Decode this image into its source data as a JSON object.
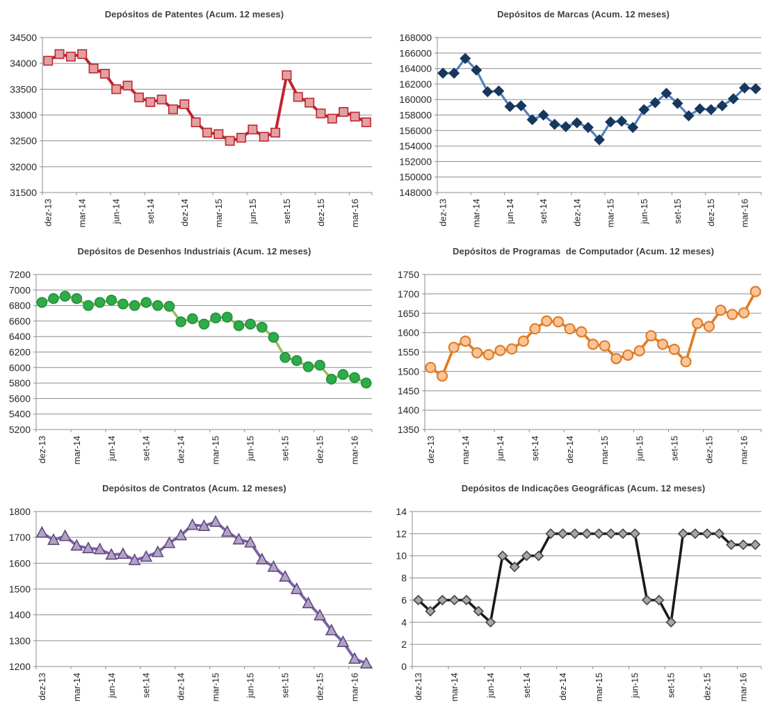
{
  "chart_data": [
    {
      "type": "line",
      "title": "Depósitos de Patentes (Acum. 12 meses)",
      "categories": [
        "dez-13",
        "jan-14",
        "fev-14",
        "mar-14",
        "abr-14",
        "mai-14",
        "jun-14",
        "jul-14",
        "ago-14",
        "set-14",
        "out-14",
        "nov-14",
        "dez-14",
        "jan-15",
        "fev-15",
        "mar-15",
        "abr-15",
        "mai-15",
        "jun-15",
        "jul-15",
        "ago-15",
        "set-15",
        "out-15",
        "nov-15",
        "dez-15",
        "jan-16",
        "fev-16",
        "mar-16",
        "abr-16"
      ],
      "values": [
        34050,
        34180,
        34130,
        34180,
        33900,
        33800,
        33500,
        33570,
        33340,
        33250,
        33300,
        33110,
        33210,
        32860,
        32660,
        32630,
        32500,
        32560,
        32720,
        32580,
        32660,
        33770,
        33350,
        33240,
        33030,
        32930,
        33060,
        32970,
        32860
      ],
      "xtick_labels": [
        "dez-13",
        "mar-14",
        "jun-14",
        "set-14",
        "dez-14",
        "mar-15",
        "jun-15",
        "set-15",
        "dez-15",
        "mar-16"
      ],
      "xtick_every": 3,
      "ylim": [
        31500,
        34500
      ],
      "ytick_step": 500,
      "marker": "square",
      "line_color": "#C3232F",
      "marker_fill": "#E2A1A1",
      "marker_border": "#BD2532",
      "grid": true,
      "legend": "none",
      "x_label_rotation": -90
    },
    {
      "type": "line",
      "title": "Depósitos de Marcas (Acum. 12 meses)",
      "categories": [
        "dez-13",
        "jan-14",
        "fev-14",
        "mar-14",
        "abr-14",
        "mai-14",
        "jun-14",
        "jul-14",
        "ago-14",
        "set-14",
        "out-14",
        "nov-14",
        "dez-14",
        "jan-15",
        "fev-15",
        "mar-15",
        "abr-15",
        "mai-15",
        "jun-15",
        "jul-15",
        "ago-15",
        "set-15",
        "out-15",
        "nov-15",
        "dez-15",
        "jan-16",
        "fev-16",
        "mar-16",
        "abr-16"
      ],
      "values": [
        163400,
        163400,
        165300,
        163800,
        161000,
        161100,
        159100,
        159200,
        157400,
        158000,
        156800,
        156500,
        157000,
        156400,
        154800,
        157100,
        157200,
        156400,
        158700,
        159600,
        160800,
        159500,
        157900,
        158800,
        158700,
        159200,
        160100,
        161500,
        161400
      ],
      "xtick_labels": [
        "dez-13",
        "mar-14",
        "jun-14",
        "set-14",
        "dez-14",
        "mar-15",
        "jun-15",
        "set-15",
        "dez-15",
        "mar-16"
      ],
      "xtick_every": 3,
      "ylim": [
        148000,
        168000
      ],
      "ytick_step": 2000,
      "marker": "diamond",
      "line_color": "#4F81BD",
      "marker_fill": "#17375D",
      "marker_border": "#17375D",
      "grid": true,
      "legend": "none",
      "x_label_rotation": -90
    },
    {
      "type": "line",
      "title": "Depósitos de Desenhos Industriais (Acum. 12 meses)",
      "categories": [
        "dez-13",
        "jan-14",
        "fev-14",
        "mar-14",
        "abr-14",
        "mai-14",
        "jun-14",
        "jul-14",
        "ago-14",
        "set-14",
        "out-14",
        "nov-14",
        "dez-14",
        "jan-15",
        "fev-15",
        "mar-15",
        "abr-15",
        "mai-15",
        "jun-15",
        "jul-15",
        "ago-15",
        "set-15",
        "out-15",
        "nov-15",
        "dez-15",
        "jan-16",
        "fev-16",
        "mar-16",
        "abr-16"
      ],
      "values": [
        6840,
        6890,
        6920,
        6890,
        6800,
        6840,
        6870,
        6820,
        6800,
        6840,
        6800,
        6790,
        6590,
        6630,
        6560,
        6640,
        6650,
        6540,
        6560,
        6520,
        6390,
        6130,
        6090,
        6010,
        6030,
        5850,
        5910,
        5870,
        5800
      ],
      "xtick_labels": [
        "dez-13",
        "mar-14",
        "jun-14",
        "set-14",
        "dez-14",
        "mar-15",
        "jun-15",
        "set-15",
        "dez-15",
        "mar-16"
      ],
      "xtick_every": 3,
      "ylim": [
        5200,
        7200
      ],
      "ytick_step": 200,
      "marker": "circle",
      "line_color": "#9BBB59",
      "marker_fill": "#2EAC4A",
      "marker_border": "#1F9038",
      "grid": true,
      "legend": "none",
      "x_label_rotation": -90
    },
    {
      "type": "line",
      "title": "Depósitos de Programas  de Computador (Acum. 12 meses)",
      "categories": [
        "dez-13",
        "jan-14",
        "fev-14",
        "mar-14",
        "abr-14",
        "mai-14",
        "jun-14",
        "jul-14",
        "ago-14",
        "set-14",
        "out-14",
        "nov-14",
        "dez-14",
        "jan-15",
        "fev-15",
        "mar-15",
        "abr-15",
        "mai-15",
        "jun-15",
        "jul-15",
        "ago-15",
        "set-15",
        "out-15",
        "nov-15",
        "dez-15",
        "jan-16",
        "fev-16",
        "mar-16",
        "abr-16"
      ],
      "values": [
        1510,
        1488,
        1562,
        1578,
        1548,
        1543,
        1554,
        1558,
        1578,
        1610,
        1630,
        1628,
        1610,
        1602,
        1570,
        1566,
        1533,
        1542,
        1553,
        1592,
        1570,
        1557,
        1525,
        1624,
        1616,
        1658,
        1647,
        1651,
        1706
      ],
      "xtick_labels": [
        "dez-13",
        "mar-14",
        "jun-14",
        "set-14",
        "dez-14",
        "mar-15",
        "jun-15",
        "set-15",
        "dez-15",
        "mar-16"
      ],
      "xtick_every": 3,
      "ylim": [
        1350,
        1750
      ],
      "ytick_step": 50,
      "marker": "circle",
      "line_color": "#E07D26",
      "marker_fill": "#F9C499",
      "marker_border": "#E07D26",
      "grid": true,
      "legend": "none",
      "x_label_rotation": -90
    },
    {
      "type": "line",
      "title": "Depósitos de Contratos (Acum. 12 meses)",
      "categories": [
        "dez-13",
        "jan-14",
        "fev-14",
        "mar-14",
        "abr-14",
        "mai-14",
        "jun-14",
        "jul-14",
        "ago-14",
        "set-14",
        "out-14",
        "nov-14",
        "dez-14",
        "jan-15",
        "fev-15",
        "mar-15",
        "abr-15",
        "mai-15",
        "jun-15",
        "jul-15",
        "ago-15",
        "set-15",
        "out-15",
        "nov-15",
        "dez-15",
        "jan-16",
        "fev-16",
        "mar-16",
        "abr-16"
      ],
      "values": [
        1718,
        1690,
        1705,
        1668,
        1658,
        1654,
        1633,
        1636,
        1612,
        1625,
        1643,
        1678,
        1708,
        1748,
        1744,
        1760,
        1722,
        1692,
        1680,
        1615,
        1586,
        1548,
        1500,
        1445,
        1398,
        1340,
        1295,
        1230,
        1212
      ],
      "xtick_labels": [
        "dez-13",
        "mar-14",
        "jun-14",
        "set-14",
        "dez-14",
        "mar-15",
        "jun-15",
        "set-15",
        "dez-15",
        "mar-16"
      ],
      "xtick_every": 3,
      "ylim": [
        1200,
        1800
      ],
      "ytick_step": 100,
      "marker": "triangle",
      "line_color": "#7C62A8",
      "marker_fill": "#B2A2C8",
      "marker_border": "#5F497A",
      "grid": true,
      "legend": "none",
      "x_label_rotation": -90
    },
    {
      "type": "line",
      "title": "Depósitos de Indicações Geográficas (Acum. 12 meses)",
      "categories": [
        "dez-13",
        "jan-14",
        "fev-14",
        "mar-14",
        "abr-14",
        "mai-14",
        "jun-14",
        "jul-14",
        "ago-14",
        "set-14",
        "out-14",
        "nov-14",
        "dez-14",
        "jan-15",
        "fev-15",
        "mar-15",
        "abr-15",
        "mai-15",
        "jun-15",
        "jul-15",
        "ago-15",
        "set-15",
        "out-15",
        "nov-15",
        "dez-15",
        "jan-16",
        "fev-16",
        "mar-16",
        "abr-16"
      ],
      "values": [
        6,
        5,
        6,
        6,
        6,
        5,
        4,
        10,
        9,
        10,
        10,
        12,
        12,
        12,
        12,
        12,
        12,
        12,
        12,
        6,
        6,
        4,
        12,
        12,
        12,
        12,
        11,
        11,
        11
      ],
      "xtick_labels": [
        "dez-13",
        "mar-14",
        "jun-14",
        "set-14",
        "dez-14",
        "mar-15",
        "jun-15",
        "set-15",
        "dez-15",
        "mar-16"
      ],
      "xtick_every": 3,
      "ylim": [
        0,
        14
      ],
      "ytick_step": 2,
      "marker": "diamond",
      "line_color": "#1A1A1A",
      "marker_fill": "#A6A6A6",
      "marker_border": "#404040",
      "grid": true,
      "legend": "none",
      "x_label_rotation": -90
    }
  ],
  "style": {
    "axis_color": "#8C8C8C",
    "tick_text_color": "#262626",
    "title_color": "#3F3F3F",
    "background": "#FFFFFF"
  }
}
